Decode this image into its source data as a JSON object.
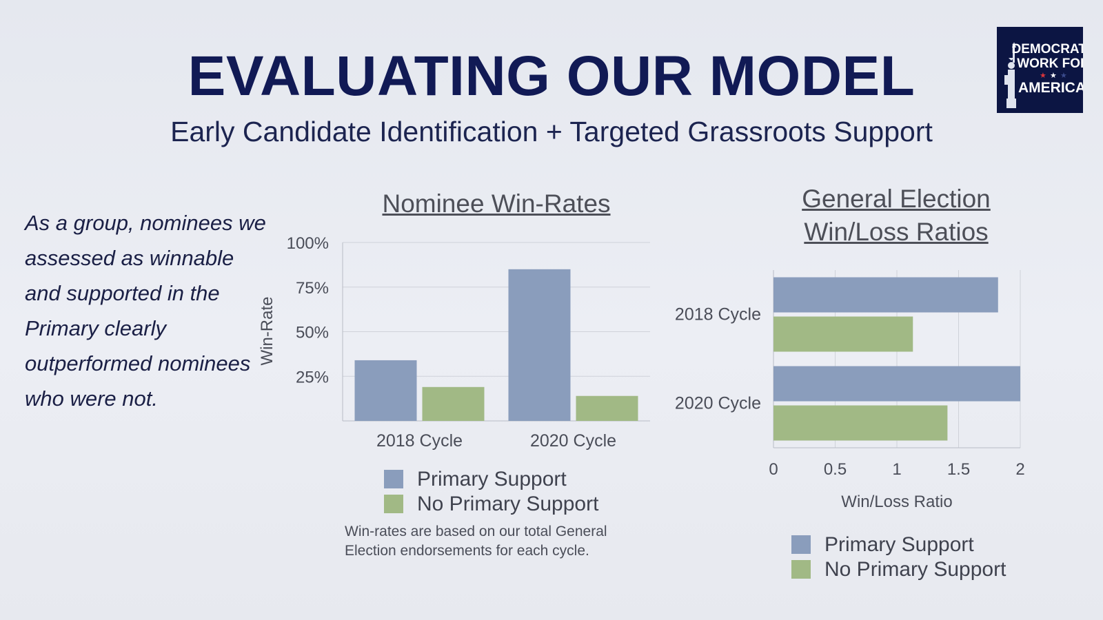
{
  "title": "EVALUATING OUR MODEL",
  "subtitle": "Early Candidate Identification + Targeted Grassroots Support",
  "logo": {
    "line1": "DEMOCRATS",
    "line2": "WORK FOR",
    "line3": "AMERICA"
  },
  "side_text": "As a group, nominees we assessed as winnable and supported in the Primary clearly outperformed nominees who were not.",
  "footnote": "Win-rates are based on our total General Election endorsements for each cycle.",
  "colors": {
    "primary_support": "#8a9dbc",
    "no_primary_support": "#a1b985",
    "title": "#111a55"
  },
  "chart_data": [
    {
      "type": "bar",
      "title": "Nominee Win-Rates",
      "xlabel": "",
      "ylabel": "Win-Rate",
      "ylim": [
        0,
        100
      ],
      "yticks": [
        "25%",
        "50%",
        "75%",
        "100%"
      ],
      "ytick_values": [
        25,
        50,
        75,
        100
      ],
      "categories": [
        "2018 Cycle",
        "2020 Cycle"
      ],
      "series": [
        {
          "name": "Primary Support",
          "values": [
            34,
            85
          ]
        },
        {
          "name": "No Primary Support",
          "values": [
            19,
            14
          ]
        }
      ],
      "grid": true,
      "legend": "bottom"
    },
    {
      "type": "bar",
      "orientation": "horizontal",
      "title_lines": [
        "General Election",
        "Win/Loss Ratios"
      ],
      "xlabel": "Win/Loss Ratio",
      "ylabel": "",
      "xlim": [
        0,
        2
      ],
      "xticks": [
        "0",
        "0.5",
        "1",
        "1.5",
        "2"
      ],
      "xtick_values": [
        0,
        0.5,
        1,
        1.5,
        2
      ],
      "categories": [
        "2018 Cycle",
        "2020 Cycle"
      ],
      "series": [
        {
          "name": "Primary Support",
          "values": [
            1.82,
            2.0
          ]
        },
        {
          "name": "No Primary Support",
          "values": [
            1.13,
            1.41
          ]
        }
      ],
      "grid": true,
      "legend": "bottom"
    }
  ]
}
